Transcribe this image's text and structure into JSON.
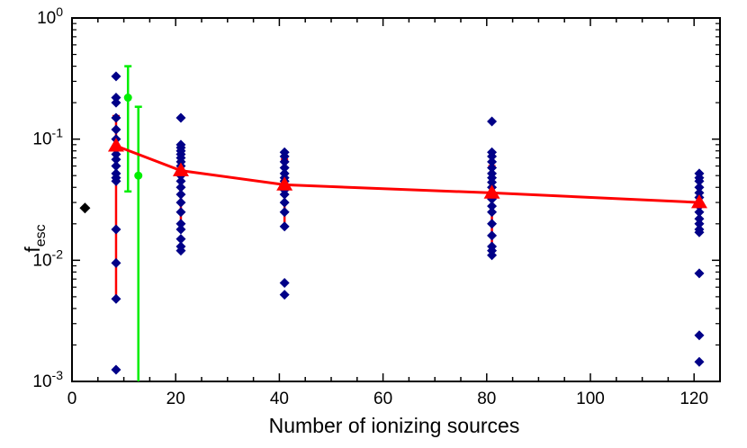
{
  "chart_data": {
    "type": "scatter",
    "title": "",
    "xlabel": "Number of ionizing sources",
    "ylabel": {
      "main": "f",
      "sub": "esc"
    },
    "xlim": [
      0,
      125
    ],
    "ylim": [
      0.001,
      1
    ],
    "yscale": "log",
    "grid": false,
    "x_ticks": [
      {
        "value": 0,
        "label": "0"
      },
      {
        "value": 20,
        "label": "20"
      },
      {
        "value": 40,
        "label": "40"
      },
      {
        "value": 60,
        "label": "60"
      },
      {
        "value": 80,
        "label": "80"
      },
      {
        "value": 100,
        "label": "100"
      },
      {
        "value": 120,
        "label": "120"
      }
    ],
    "y_ticks": [
      {
        "value": 0.001,
        "base": "10",
        "exp": "-3"
      },
      {
        "value": 0.01,
        "base": "10",
        "exp": "-2"
      },
      {
        "value": 0.1,
        "base": "10",
        "exp": "-1"
      },
      {
        "value": 1,
        "base": "10",
        "exp": "0"
      }
    ],
    "colors": {
      "individual": "#000088",
      "single": "#000000",
      "median": "#ff0000",
      "green": "#00ee00"
    },
    "single_point": {
      "x": 2.5,
      "y": 0.027
    },
    "individual_points": [
      {
        "x": 8.5,
        "y": [
          0.33,
          0.22,
          0.2,
          0.15,
          0.12,
          0.1,
          0.085,
          0.075,
          0.068,
          0.06,
          0.052,
          0.048,
          0.045,
          0.018,
          0.0095,
          0.0048,
          0.00125
        ]
      },
      {
        "x": 21,
        "y": [
          0.15,
          0.09,
          0.085,
          0.08,
          0.075,
          0.07,
          0.065,
          0.06,
          0.055,
          0.05,
          0.045,
          0.04,
          0.035,
          0.03,
          0.025,
          0.02,
          0.018,
          0.015,
          0.013,
          0.012
        ]
      },
      {
        "x": 41,
        "y": [
          0.078,
          0.072,
          0.065,
          0.058,
          0.052,
          0.048,
          0.045,
          0.042,
          0.038,
          0.035,
          0.03,
          0.025,
          0.019,
          0.0065,
          0.0052
        ]
      },
      {
        "x": 81,
        "y": [
          0.14,
          0.078,
          0.072,
          0.065,
          0.058,
          0.052,
          0.048,
          0.044,
          0.04,
          0.036,
          0.032,
          0.028,
          0.025,
          0.02,
          0.016,
          0.013,
          0.012,
          0.011
        ]
      },
      {
        "x": 121,
        "y": [
          0.052,
          0.048,
          0.045,
          0.04,
          0.036,
          0.033,
          0.03,
          0.028,
          0.025,
          0.022,
          0.02,
          0.018,
          0.017,
          0.0078,
          0.0024,
          0.00145
        ]
      }
    ],
    "median_series": {
      "x": [
        8.5,
        21,
        41,
        81,
        121
      ],
      "y": [
        0.088,
        0.055,
        0.042,
        0.036,
        0.03
      ],
      "err_low": [
        0.0048,
        0.018,
        0.019,
        0.013,
        0.017
      ],
      "err_high": [
        0.155,
        0.08,
        0.068,
        0.06,
        0.045
      ]
    },
    "green_points": [
      {
        "x": 10.8,
        "y": 0.22,
        "err_low": 0.037,
        "err_high": 0.4
      },
      {
        "x": 12.8,
        "y": 0.05,
        "err_low": 0.001,
        "err_high": 0.185
      }
    ]
  }
}
